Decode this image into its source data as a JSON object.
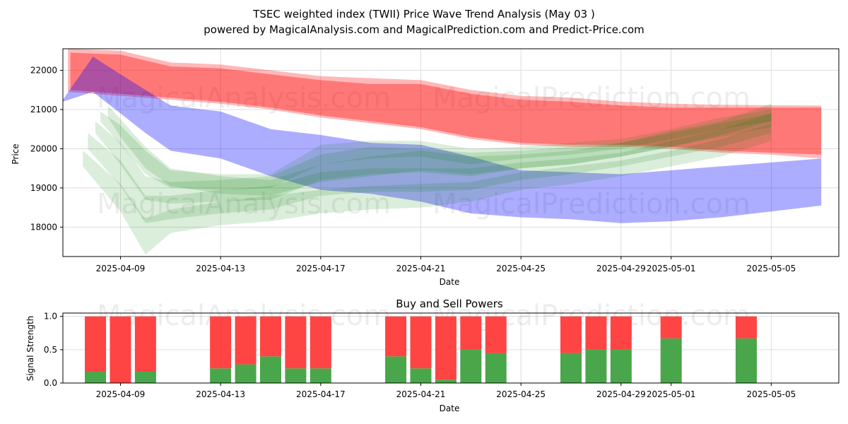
{
  "chart_data": [
    {
      "type": "area",
      "title_line1": "TSEC weighted index (TWII) Price Wave Trend Analysis (May 03 )",
      "title_line2": "powered by MagicalAnalysis.com and MagicalPrediction.com and Predict-Price.com",
      "xlabel": "Date",
      "ylabel": "Price",
      "ylim": [
        17250,
        22550
      ],
      "xlim": [
        -2.3,
        28.7
      ],
      "x_ticks": [
        {
          "day": 0,
          "label": "2025-04-09"
        },
        {
          "day": 4,
          "label": "2025-04-13"
        },
        {
          "day": 8,
          "label": "2025-04-17"
        },
        {
          "day": 12,
          "label": "2025-04-21"
        },
        {
          "day": 16,
          "label": "2025-04-25"
        },
        {
          "day": 20,
          "label": "2025-04-29"
        },
        {
          "day": 22,
          "label": "2025-05-01"
        },
        {
          "day": 26,
          "label": "2025-05-05"
        }
      ],
      "y_ticks": [
        18000,
        19000,
        20000,
        21000,
        22000
      ],
      "grid": true,
      "watermarks": [
        "MagicalAnalysis.com",
        "MagicalPrediction.com",
        "MagicalAnalysis.com",
        "MagicalPrediction.com"
      ],
      "colors": {
        "red": "#ff0000",
        "blue": "#0000ff",
        "green": "#008000"
      },
      "series": [
        {
          "name": "red-band-outer",
          "color": "red",
          "opacity": 0.28,
          "x": [
            -2.1,
            0,
            2,
            4,
            6,
            8,
            10,
            12,
            14,
            16,
            18,
            20,
            22,
            24,
            26,
            28
          ],
          "upper": [
            22550,
            22500,
            22200,
            22150,
            22000,
            21850,
            21800,
            21750,
            21500,
            21350,
            21300,
            21200,
            21150,
            21120,
            21110,
            21100
          ],
          "lower": [
            21450,
            21350,
            21250,
            21150,
            21000,
            20800,
            20650,
            20500,
            20250,
            20100,
            20050,
            20050,
            20000,
            19900,
            19850,
            19750
          ]
        },
        {
          "name": "red-band-inner",
          "color": "red",
          "opacity": 0.35,
          "x": [
            -2.0,
            0,
            2,
            4,
            6,
            8,
            10,
            12,
            14,
            16,
            18,
            20,
            22,
            24,
            26,
            28
          ],
          "upper": [
            22450,
            22400,
            22100,
            22050,
            21900,
            21750,
            21650,
            21650,
            21400,
            21250,
            21200,
            21100,
            21050,
            21050,
            21050,
            21050
          ],
          "lower": [
            21500,
            21400,
            21300,
            21200,
            21050,
            20850,
            20700,
            20550,
            20300,
            20150,
            20100,
            20100,
            20050,
            19950,
            19900,
            19850
          ]
        },
        {
          "name": "blue-band",
          "color": "blue",
          "opacity": 0.32,
          "x": [
            -2.3,
            -1.1,
            0,
            1,
            2,
            4,
            6,
            8,
            10,
            12,
            14,
            16,
            18,
            20,
            22,
            24,
            26,
            28
          ],
          "upper": [
            21250,
            22350,
            21900,
            21500,
            21100,
            20950,
            20500,
            20350,
            20150,
            20100,
            19800,
            19450,
            19400,
            19350,
            19450,
            19550,
            19650,
            19750
          ],
          "lower": [
            21200,
            21450,
            20900,
            20400,
            19950,
            19750,
            19300,
            18950,
            18850,
            18650,
            18350,
            18250,
            18200,
            18100,
            18150,
            18250,
            18400,
            18550
          ]
        },
        {
          "name": "green-band-1",
          "color": "green",
          "opacity": 0.14,
          "x": [
            -0.8,
            0,
            1,
            2,
            4,
            6,
            8,
            10,
            12,
            14,
            16,
            18,
            20,
            22,
            24,
            26
          ],
          "upper": [
            20950,
            20600,
            19950,
            19450,
            19350,
            19350,
            20100,
            20200,
            20200,
            20000,
            20050,
            20150,
            20250,
            20500,
            20800,
            21000
          ],
          "lower": [
            20700,
            20100,
            19350,
            19000,
            18950,
            19000,
            19600,
            19750,
            19800,
            19600,
            19750,
            19850,
            20000,
            20250,
            20500,
            20700
          ]
        },
        {
          "name": "green-band-2",
          "color": "green",
          "opacity": 0.14,
          "x": [
            -1.0,
            0,
            1,
            2,
            4,
            6,
            8,
            10,
            12,
            14,
            16,
            18,
            20,
            22,
            24,
            26
          ],
          "upper": [
            20700,
            20150,
            19300,
            19150,
            19200,
            19300,
            19850,
            20050,
            20000,
            19900,
            19950,
            20050,
            20150,
            20450,
            20700,
            21150
          ],
          "lower": [
            20400,
            19600,
            18700,
            18600,
            18650,
            18700,
            19200,
            19350,
            19400,
            19300,
            19500,
            19600,
            19800,
            20050,
            20350,
            20700
          ]
        },
        {
          "name": "green-band-3",
          "color": "green",
          "opacity": 0.14,
          "x": [
            -1.3,
            0,
            1,
            2,
            4,
            6,
            8,
            10,
            12,
            14,
            16,
            18,
            20,
            22,
            24,
            26
          ],
          "upper": [
            20400,
            19700,
            18800,
            18800,
            18950,
            19050,
            19400,
            19500,
            19500,
            19500,
            19650,
            19750,
            19900,
            20200,
            20500,
            20900
          ],
          "lower": [
            20000,
            19050,
            18100,
            18200,
            18350,
            18450,
            18800,
            18900,
            18900,
            18950,
            19200,
            19350,
            19550,
            19800,
            20050,
            20400
          ]
        },
        {
          "name": "green-band-4",
          "color": "green",
          "opacity": 0.14,
          "x": [
            -1.5,
            0,
            1,
            2,
            4,
            6,
            8,
            10,
            12,
            14,
            16,
            18,
            20,
            22,
            24,
            26
          ],
          "upper": [
            19950,
            19100,
            18200,
            18450,
            18650,
            18800,
            18950,
            19050,
            19100,
            19150,
            19400,
            19550,
            19700,
            19950,
            20250,
            20650
          ],
          "lower": [
            19550,
            18400,
            17300,
            17850,
            18050,
            18150,
            18350,
            18450,
            18500,
            18650,
            18950,
            19100,
            19300,
            19550,
            19800,
            20200
          ]
        },
        {
          "name": "green-band-5",
          "color": "green",
          "opacity": 0.14,
          "x": [
            -0.5,
            0,
            1,
            2,
            4,
            6,
            8,
            10,
            12,
            14,
            16,
            18,
            20,
            22,
            24,
            26
          ],
          "upper": [
            21100,
            20750,
            20050,
            19500,
            19300,
            19200,
            19600,
            19800,
            19950,
            19800,
            19850,
            19950,
            20150,
            20400,
            20650,
            20900
          ],
          "lower": [
            20800,
            20300,
            19500,
            19050,
            18850,
            18800,
            19150,
            19300,
            19450,
            19350,
            19500,
            19600,
            19800,
            20050,
            20300,
            20550
          ]
        }
      ]
    },
    {
      "type": "bar",
      "title": "Buy and Sell Powers",
      "xlabel": "Date",
      "ylabel": "Signal Strength",
      "ylim": [
        0,
        1.05
      ],
      "xlim": [
        -2.3,
        28.7
      ],
      "y_ticks": [
        "0.0",
        "0.5",
        "1.0"
      ],
      "x_ticks": [
        {
          "day": 0,
          "label": "2025-04-09"
        },
        {
          "day": 4,
          "label": "2025-04-13"
        },
        {
          "day": 8,
          "label": "2025-04-17"
        },
        {
          "day": 12,
          "label": "2025-04-21"
        },
        {
          "day": 16,
          "label": "2025-04-25"
        },
        {
          "day": 20,
          "label": "2025-04-29"
        },
        {
          "day": 22,
          "label": "2025-05-01"
        },
        {
          "day": 26,
          "label": "2025-05-05"
        }
      ],
      "grid": true,
      "watermarks": [
        "MagicalAnalysis.com",
        "MagicalPrediction.com"
      ],
      "colors": {
        "buy": "#4aa64a",
        "sell": "#ff4444"
      },
      "categories": [
        "2025-04-08",
        "2025-04-09",
        "2025-04-10",
        "2025-04-13",
        "2025-04-14",
        "2025-04-15",
        "2025-04-16",
        "2025-04-17",
        "2025-04-20",
        "2025-04-21",
        "2025-04-22",
        "2025-04-23",
        "2025-04-24",
        "2025-04-27",
        "2025-04-28",
        "2025-04-29",
        "2025-05-01",
        "2025-05-04"
      ],
      "days": [
        -1,
        0,
        1,
        4,
        5,
        6,
        7,
        8,
        11,
        12,
        13,
        14,
        15,
        18,
        19,
        20,
        22,
        25
      ],
      "series": [
        {
          "name": "Buy",
          "values": [
            0.17,
            0.0,
            0.17,
            0.22,
            0.28,
            0.4,
            0.22,
            0.22,
            0.4,
            0.22,
            0.05,
            0.5,
            0.45,
            0.45,
            0.5,
            0.5,
            0.67,
            0.67
          ]
        },
        {
          "name": "Sell",
          "values": [
            0.83,
            1.0,
            0.83,
            0.78,
            0.72,
            0.6,
            0.78,
            0.78,
            0.6,
            0.78,
            0.95,
            0.5,
            0.55,
            0.55,
            0.5,
            0.5,
            0.33,
            0.33
          ]
        }
      ]
    }
  ]
}
